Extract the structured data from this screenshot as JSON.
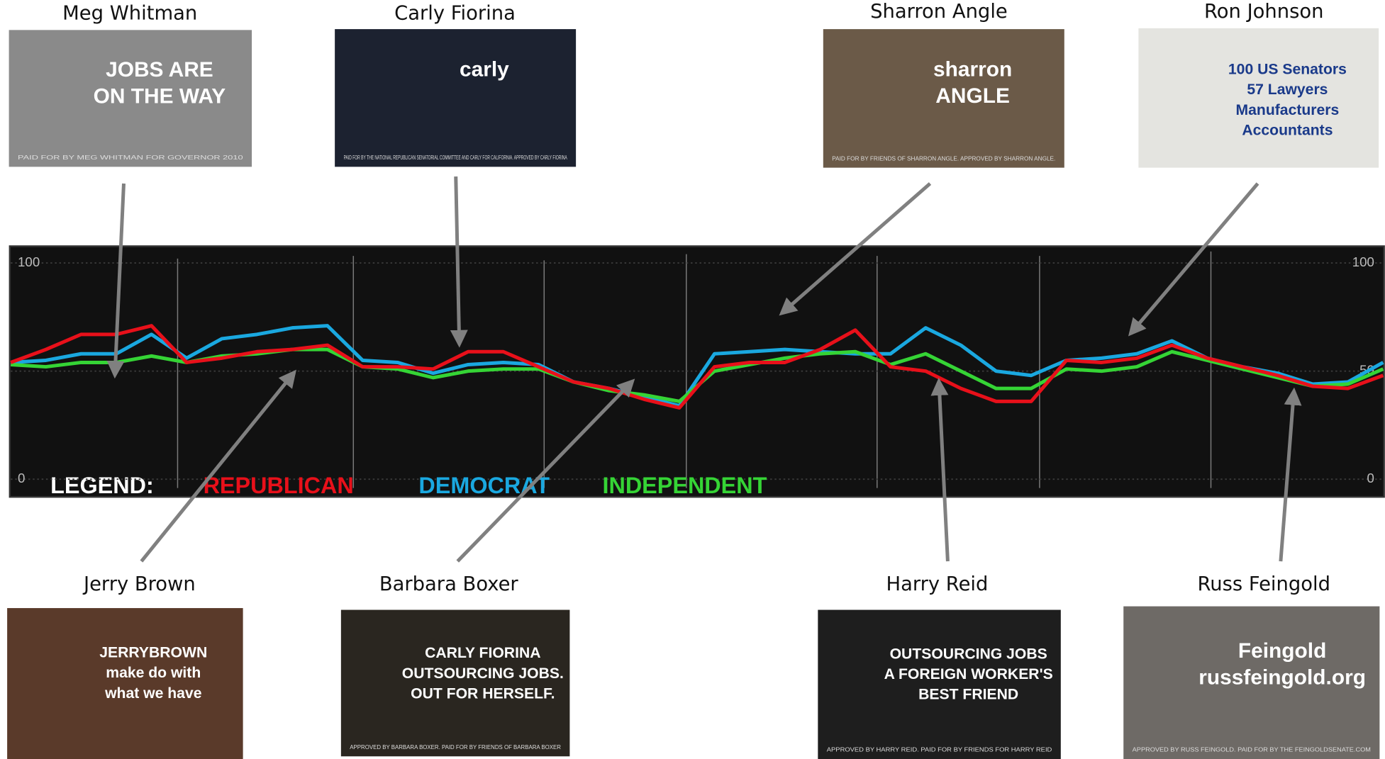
{
  "chart_data": {
    "type": "line",
    "ylim": [
      0,
      100
    ],
    "yticks": [
      0,
      50,
      100
    ],
    "grid": true,
    "series": [
      {
        "name": "DEMOCRAT",
        "color": "#1aa8e0",
        "values": [
          54,
          55,
          58,
          58,
          67,
          56,
          65,
          67,
          70,
          71,
          55,
          54,
          49,
          53,
          54,
          53,
          45,
          42,
          38,
          34,
          58,
          59,
          60,
          59,
          58,
          58,
          70,
          62,
          50,
          48,
          55,
          56,
          58,
          64,
          56,
          52,
          49,
          44,
          45,
          54
        ]
      },
      {
        "name": "INDEPENDENT",
        "color": "#35d435",
        "values": [
          53,
          52,
          54,
          54,
          57,
          54,
          57,
          58,
          60,
          60,
          52,
          51,
          47,
          50,
          51,
          51,
          45,
          41,
          39,
          36,
          50,
          53,
          56,
          58,
          59,
          53,
          58,
          50,
          42,
          42,
          51,
          50,
          52,
          59,
          55,
          51,
          47,
          43,
          44,
          51
        ]
      },
      {
        "name": "REPUBLICAN",
        "color": "#e8101a",
        "values": [
          54,
          60,
          67,
          67,
          71,
          54,
          56,
          59,
          60,
          62,
          52,
          52,
          51,
          59,
          59,
          52,
          45,
          42,
          37,
          33,
          52,
          54,
          54,
          60,
          69,
          52,
          50,
          42,
          36,
          36,
          55,
          54,
          56,
          62,
          56,
          52,
          48,
          43,
          42,
          48
        ]
      }
    ],
    "legend_label": "LEGEND:",
    "annotations": [
      {
        "text": "Meg Whitman",
        "caption": [
          "JOBS ARE",
          "ON THE WAY",
          "PAID FOR BY MEG WHITMAN FOR GOVERNOR 2010"
        ]
      },
      {
        "text": "Carly Fiorina",
        "caption": [
          "carly",
          "PAID FOR BY THE NATIONAL REPUBLICAN SENATORIAL COMMITTEE AND CARLY FOR CALIFORNIA. APPROVED BY CARLY FIORINA"
        ]
      },
      {
        "text": "Sharron Angle",
        "caption": [
          "sharron",
          "ANGLE",
          "PAID FOR BY FRIENDS OF SHARRON ANGLE. APPROVED BY SHARRON ANGLE."
        ]
      },
      {
        "text": "Ron Johnson",
        "caption": [
          "100 US Senators",
          "57 Lawyers",
          "Manufacturers",
          "Accountants"
        ]
      },
      {
        "text": "Jerry Brown",
        "caption": [
          "JERRYBROWN",
          "make do with",
          "what we have"
        ]
      },
      {
        "text": "Barbara Boxer",
        "caption": [
          "CARLY FIORINA",
          "OUTSOURCING JOBS.",
          "OUT FOR HERSELF.",
          "APPROVED BY BARBARA BOXER. PAID FOR BY FRIENDS OF BARBARA BOXER"
        ]
      },
      {
        "text": "Harry Reid",
        "caption": [
          "OUTSOURCING JOBS",
          "A FOREIGN WORKER'S",
          "BEST FRIEND",
          "APPROVED BY HARRY REID. PAID FOR BY FRIENDS FOR HARRY REID"
        ]
      },
      {
        "text": "Russ Feingold",
        "caption": [
          "Feingold",
          "russfeingold.org",
          "APPROVED BY RUSS FEINGOLD. PAID FOR BY THE FEINGOLDSENATE.COM"
        ]
      }
    ]
  }
}
